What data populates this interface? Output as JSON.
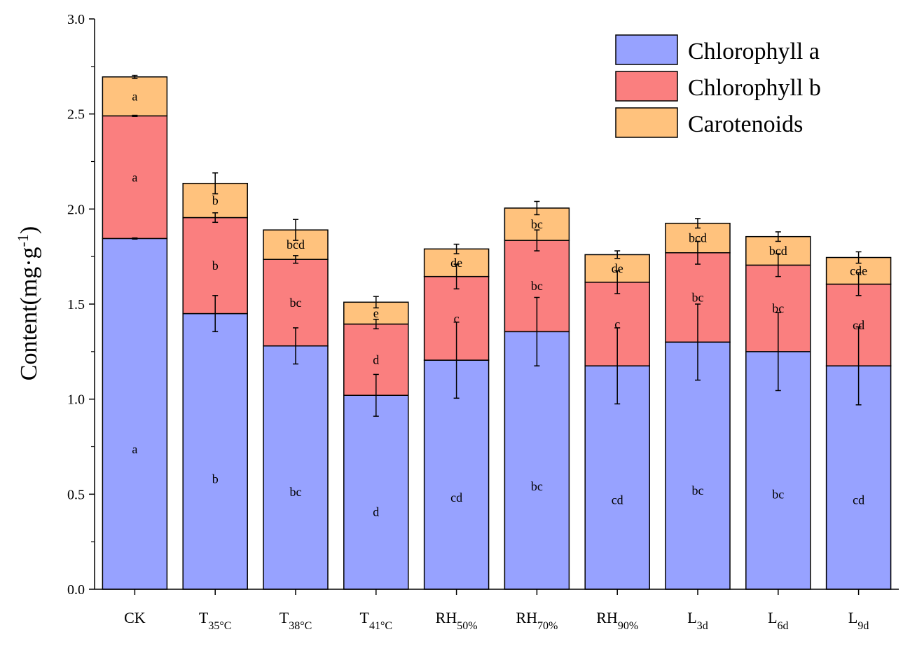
{
  "chart_data": {
    "type": "bar",
    "stacked": true,
    "title": "",
    "xlabel": "",
    "ylabel": {
      "base": "Content(mg·g",
      "superscript": "-1",
      "close": ")"
    },
    "ylim": [
      0,
      3.0
    ],
    "yticks": [
      "0.0",
      "0.5",
      "1.0",
      "1.5",
      "2.0",
      "2.5",
      "3.0"
    ],
    "grid": false,
    "legend_position": "top-right",
    "categories": [
      {
        "main": "CK",
        "sub": ""
      },
      {
        "main": "T",
        "sub": "35°C"
      },
      {
        "main": "T",
        "sub": "38°C"
      },
      {
        "main": "T",
        "sub": "41°C"
      },
      {
        "main": "RH",
        "sub": "50%"
      },
      {
        "main": "RH",
        "sub": "70%"
      },
      {
        "main": "RH",
        "sub": "90%"
      },
      {
        "main": "L",
        "sub": "3d"
      },
      {
        "main": "L",
        "sub": "6d"
      },
      {
        "main": "L",
        "sub": "9d"
      }
    ],
    "series": [
      {
        "name": "Chlorophyll a",
        "color": "#97a2ff",
        "values": [
          1.845,
          1.45,
          1.28,
          1.02,
          1.205,
          1.355,
          1.175,
          1.3,
          1.25,
          1.175
        ],
        "errors": [
          0.003,
          0.095,
          0.095,
          0.11,
          0.2,
          0.18,
          0.2,
          0.2,
          0.205,
          0.205
        ],
        "labels": [
          "a",
          "b",
          "bc",
          "d",
          "cd",
          "bc",
          "cd",
          "bc",
          "bc",
          "cd"
        ]
      },
      {
        "name": "Chlorophyll b",
        "color": "#fa7f7f",
        "values": [
          0.645,
          0.505,
          0.455,
          0.375,
          0.44,
          0.48,
          0.44,
          0.47,
          0.455,
          0.43
        ],
        "errors": [
          0.003,
          0.025,
          0.02,
          0.025,
          0.065,
          0.055,
          0.06,
          0.06,
          0.06,
          0.06
        ],
        "labels": [
          "a",
          "b",
          "bc",
          "d",
          "c",
          "bc",
          "c",
          "bc",
          "bc",
          "cd"
        ]
      },
      {
        "name": "Carotenoids",
        "color": "#ffc27d",
        "values": [
          0.205,
          0.18,
          0.155,
          0.115,
          0.145,
          0.17,
          0.145,
          0.155,
          0.15,
          0.14
        ],
        "errors": [
          0.008,
          0.055,
          0.055,
          0.03,
          0.025,
          0.035,
          0.02,
          0.025,
          0.025,
          0.03
        ],
        "labels": [
          "a",
          "b",
          "bcd",
          "e",
          "de",
          "bc",
          "de",
          "bcd",
          "bcd",
          "cde"
        ]
      }
    ]
  }
}
